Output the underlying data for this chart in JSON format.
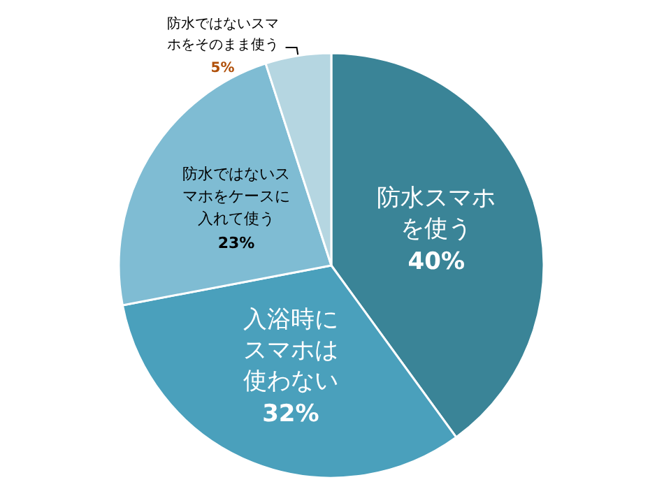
{
  "chart_data": {
    "type": "pie",
    "categories": [
      "防水スマホを使う",
      "入浴時にスマホは使わない",
      "防水ではないスマホをケースに入れて使う",
      "防水ではないスマホをそのまま使う"
    ],
    "values": [
      40,
      32,
      23,
      5
    ],
    "value_labels": [
      "40%",
      "32%",
      "23%",
      "5%"
    ],
    "colors": [
      "#3a8497",
      "#4aa0bc",
      "#7fbcd3",
      "#b5d6e1"
    ],
    "legend": false
  }
}
